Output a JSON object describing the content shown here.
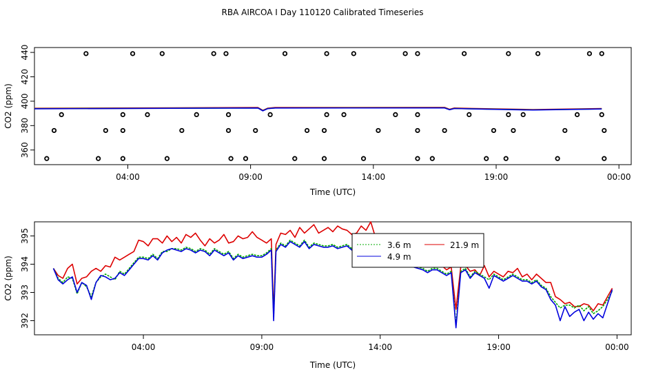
{
  "chart_data": [
    {
      "type": "scatter+line",
      "title": "RBA AIRCOA I  Day 110120  Calibrated Timeseries",
      "xlabel": "Time (UTC)",
      "ylabel": "CO2 (ppm)",
      "xlim": [
        0.2,
        24.5
      ],
      "ylim": [
        348,
        444
      ],
      "x_ticks": [
        4,
        9,
        14,
        19,
        24
      ],
      "x_tick_labels": [
        "04:00",
        "09:00",
        "14:00",
        "19:00",
        "00:00"
      ],
      "y_ticks": [
        360,
        380,
        400,
        420,
        440
      ],
      "y_tick_labels": [
        "360",
        "380",
        "400",
        "420",
        "440"
      ],
      "calibration_points": {
        "name": "calibration",
        "style": "open circle",
        "x": [
          2.3,
          4.2,
          5.4,
          7.5,
          8.0,
          10.4,
          12.1,
          13.2,
          15.3,
          15.8,
          17.7,
          19.5,
          20.7,
          22.8,
          23.3,
          1.3,
          3.8,
          4.8,
          6.8,
          8.1,
          9.8,
          12.1,
          12.8,
          14.9,
          15.8,
          17.9,
          19.5,
          20.1,
          22.3,
          23.3,
          1.0,
          3.1,
          3.8,
          6.2,
          8.1,
          9.2,
          11.3,
          12.0,
          14.2,
          15.8,
          16.9,
          18.9,
          19.7,
          21.8,
          23.4,
          0.7,
          2.8,
          3.8,
          5.6,
          8.2,
          8.8,
          10.8,
          12.0,
          13.6,
          15.8,
          16.4,
          18.6,
          19.4,
          21.5,
          23.4
        ],
        "y": [
          439,
          439,
          439,
          439,
          439,
          439,
          439,
          439,
          439,
          439,
          439,
          439,
          439,
          439,
          439,
          389,
          389,
          389,
          389,
          389,
          389,
          389,
          389,
          389,
          389,
          389,
          389,
          389,
          389,
          389,
          376,
          376,
          376,
          376,
          376,
          376,
          376,
          376,
          376,
          376,
          376,
          376,
          376,
          376,
          376,
          353,
          353,
          353,
          353,
          353,
          353,
          353,
          353,
          353,
          353,
          353,
          353,
          353,
          353,
          353
        ]
      },
      "series": [
        {
          "name": "21.9 m",
          "color": "#dd0000",
          "x": [
            0.2,
            9.3,
            9.5,
            9.7,
            10.0,
            16.9,
            17.1,
            17.3,
            18.0,
            20.5,
            23.3
          ],
          "y": [
            394.2,
            394.8,
            392.5,
            394.3,
            394.8,
            394.9,
            393.4,
            394.4,
            394.1,
            393.2,
            394.0
          ]
        },
        {
          "name": "3.6 m",
          "color": "#00aa00",
          "x": [
            0.2,
            9.3,
            9.5,
            9.7,
            10.0,
            16.9,
            17.1,
            17.3,
            18.0,
            20.5,
            23.3
          ],
          "y": [
            393.9,
            394.5,
            392.2,
            394.0,
            394.5,
            394.6,
            393.1,
            394.1,
            393.8,
            392.9,
            393.7
          ]
        },
        {
          "name": "4.9 m",
          "color": "#0000dd",
          "x": [
            0.2,
            9.3,
            9.5,
            9.7,
            10.0,
            16.9,
            17.1,
            17.3,
            18.0,
            20.5,
            23.3
          ],
          "y": [
            393.8,
            394.4,
            392.1,
            393.9,
            394.4,
            394.5,
            393.0,
            394.0,
            393.7,
            392.8,
            393.6
          ]
        }
      ]
    },
    {
      "type": "line",
      "title": "",
      "xlabel": "Time (UTC)",
      "ylabel": "CO2 (ppm)",
      "xlim": [
        -0.6,
        24.6
      ],
      "ylim": [
        391.5,
        395.5
      ],
      "x_ticks": [
        4,
        9,
        14,
        19,
        24
      ],
      "x_tick_labels": [
        "04:00",
        "09:00",
        "14:00",
        "19:00",
        "00:00"
      ],
      "y_ticks": [
        392,
        393,
        394,
        395
      ],
      "y_tick_labels": [
        "392",
        "393",
        "394",
        "395"
      ],
      "legend": {
        "position": "top-center",
        "entries": [
          "3.6 m",
          "21.9 m",
          "4.9 m"
        ]
      },
      "series": [
        {
          "name": "21.9 m",
          "color": "#dd0000",
          "style": "solid",
          "x": [
            0.2,
            0.4,
            0.6,
            0.8,
            1.0,
            1.2,
            1.4,
            1.6,
            1.8,
            2.0,
            2.2,
            2.4,
            2.6,
            2.8,
            3.0,
            3.2,
            3.4,
            3.6,
            3.8,
            4.0,
            4.2,
            4.4,
            4.6,
            4.8,
            5.0,
            5.2,
            5.4,
            5.6,
            5.8,
            6.0,
            6.2,
            6.4,
            6.6,
            6.8,
            7.0,
            7.2,
            7.4,
            7.6,
            7.8,
            8.0,
            8.2,
            8.4,
            8.6,
            8.8,
            9.0,
            9.2,
            9.4,
            9.5,
            9.6,
            9.8,
            10.0,
            10.2,
            10.4,
            10.6,
            10.8,
            11.0,
            11.2,
            11.4,
            11.6,
            11.8,
            12.0,
            12.2,
            12.4,
            12.6,
            12.8,
            13.0,
            13.2,
            13.4,
            13.6,
            13.8,
            14.0,
            14.2,
            14.4,
            14.6,
            14.8,
            15.0,
            15.2,
            15.4,
            15.6,
            15.8,
            16.0,
            16.2,
            16.4,
            16.6,
            16.8,
            17.0,
            17.2,
            17.4,
            17.6,
            17.8,
            18.0,
            18.2,
            18.4,
            18.6,
            18.8,
            19.0,
            19.2,
            19.4,
            19.6,
            19.8,
            20.0,
            20.2,
            20.4,
            20.6,
            20.8,
            21.0,
            21.2,
            21.4,
            21.6,
            21.8,
            22.0,
            22.2,
            22.4,
            22.6,
            22.8,
            23.0,
            23.2,
            23.4,
            23.6,
            23.8
          ],
          "y": [
            393.85,
            393.6,
            393.5,
            393.85,
            394.0,
            393.3,
            393.5,
            393.55,
            393.75,
            393.85,
            393.75,
            393.95,
            393.9,
            394.25,
            394.15,
            394.25,
            394.35,
            394.45,
            394.85,
            394.8,
            394.65,
            394.9,
            394.9,
            394.75,
            395.0,
            394.8,
            394.95,
            394.75,
            395.05,
            394.95,
            395.1,
            394.85,
            394.65,
            394.9,
            394.75,
            394.85,
            395.05,
            394.75,
            394.8,
            395.0,
            394.9,
            394.95,
            395.15,
            394.95,
            394.85,
            394.75,
            394.9,
            392.3,
            394.7,
            395.1,
            395.05,
            395.2,
            394.95,
            395.3,
            395.1,
            395.25,
            395.4,
            395.1,
            395.2,
            395.3,
            395.15,
            395.35,
            395.25,
            395.2,
            395.05,
            395.1,
            395.35,
            395.2,
            395.5,
            394.95,
            394.85,
            394.55,
            394.4,
            394.3,
            394.15,
            394.45,
            394.25,
            394.15,
            394.05,
            394.2,
            394.15,
            393.95,
            394.15,
            393.95,
            393.8,
            393.9,
            392.4,
            393.9,
            393.95,
            393.75,
            393.8,
            393.6,
            393.95,
            393.55,
            393.75,
            393.65,
            393.55,
            393.75,
            393.7,
            393.85,
            393.55,
            393.65,
            393.45,
            393.65,
            393.5,
            393.35,
            393.35,
            392.85,
            392.75,
            392.6,
            392.65,
            392.5,
            392.5,
            392.6,
            392.55,
            392.35,
            392.6,
            392.55,
            392.85,
            393.15
          ]
        },
        {
          "name": "3.6 m",
          "color": "#00aa00",
          "style": "dotted",
          "x": [
            0.2,
            0.4,
            0.6,
            0.8,
            1.0,
            1.2,
            1.4,
            1.6,
            1.8,
            2.0,
            2.2,
            2.4,
            2.6,
            2.8,
            3.0,
            3.2,
            3.4,
            3.6,
            3.8,
            4.0,
            4.2,
            4.4,
            4.6,
            4.8,
            5.0,
            5.2,
            5.4,
            5.6,
            5.8,
            6.0,
            6.2,
            6.4,
            6.6,
            6.8,
            7.0,
            7.2,
            7.4,
            7.6,
            7.8,
            8.0,
            8.2,
            8.4,
            8.6,
            8.8,
            9.0,
            9.2,
            9.4,
            9.5,
            9.6,
            9.8,
            10.0,
            10.2,
            10.4,
            10.6,
            10.8,
            11.0,
            11.2,
            11.4,
            11.6,
            11.8,
            12.0,
            12.2,
            12.4,
            12.6,
            12.8,
            13.0,
            13.2,
            13.4,
            13.6,
            13.8,
            14.0,
            14.2,
            14.4,
            14.6,
            14.8,
            15.0,
            15.2,
            15.4,
            15.6,
            15.8,
            16.0,
            16.2,
            16.4,
            16.6,
            16.8,
            17.0,
            17.2,
            17.4,
            17.6,
            17.8,
            18.0,
            18.2,
            18.4,
            18.6,
            18.8,
            19.0,
            19.2,
            19.4,
            19.6,
            19.8,
            20.0,
            20.2,
            20.4,
            20.6,
            20.8,
            21.0,
            21.2,
            21.4,
            21.6,
            21.8,
            22.0,
            22.2,
            22.4,
            22.6,
            22.8,
            23.0,
            23.2,
            23.4,
            23.6,
            23.8
          ],
          "y": [
            393.85,
            393.5,
            393.35,
            393.55,
            393.5,
            392.95,
            393.35,
            393.2,
            392.85,
            393.35,
            393.55,
            393.65,
            393.55,
            393.45,
            393.75,
            393.65,
            393.85,
            394.05,
            394.25,
            394.25,
            394.2,
            394.35,
            394.2,
            394.45,
            394.45,
            394.55,
            394.55,
            394.5,
            394.6,
            394.55,
            394.45,
            394.55,
            394.5,
            394.35,
            394.55,
            394.45,
            394.35,
            394.45,
            394.2,
            394.35,
            394.25,
            394.3,
            394.35,
            394.3,
            394.3,
            394.4,
            394.55,
            392.15,
            394.5,
            394.75,
            394.65,
            394.85,
            394.75,
            394.65,
            394.85,
            394.6,
            394.75,
            394.7,
            394.65,
            394.65,
            394.7,
            394.6,
            394.65,
            394.7,
            394.55,
            394.7,
            394.6,
            394.75,
            394.55,
            394.5,
            394.35,
            394.3,
            394.2,
            394.35,
            394.05,
            394.2,
            394.25,
            393.95,
            393.9,
            393.85,
            393.75,
            393.85,
            393.85,
            393.75,
            393.65,
            393.75,
            391.85,
            393.75,
            393.85,
            393.55,
            393.75,
            393.65,
            393.55,
            393.45,
            393.65,
            393.55,
            393.45,
            393.55,
            393.65,
            393.55,
            393.45,
            393.45,
            393.35,
            393.45,
            393.25,
            393.15,
            392.85,
            392.65,
            392.45,
            392.55,
            392.55,
            392.45,
            392.55,
            392.35,
            392.5,
            392.25,
            392.35,
            392.5,
            392.75,
            393.05
          ]
        },
        {
          "name": "4.9 m",
          "color": "#0000dd",
          "style": "solid",
          "x": [
            0.2,
            0.4,
            0.6,
            0.8,
            1.0,
            1.2,
            1.4,
            1.6,
            1.8,
            2.0,
            2.2,
            2.4,
            2.6,
            2.8,
            3.0,
            3.2,
            3.4,
            3.6,
            3.8,
            4.0,
            4.2,
            4.4,
            4.6,
            4.8,
            5.0,
            5.2,
            5.4,
            5.6,
            5.8,
            6.0,
            6.2,
            6.4,
            6.6,
            6.8,
            7.0,
            7.2,
            7.4,
            7.6,
            7.8,
            8.0,
            8.2,
            8.4,
            8.6,
            8.8,
            9.0,
            9.2,
            9.4,
            9.5,
            9.6,
            9.8,
            10.0,
            10.2,
            10.4,
            10.6,
            10.8,
            11.0,
            11.2,
            11.4,
            11.6,
            11.8,
            12.0,
            12.2,
            12.4,
            12.6,
            12.8,
            13.0,
            13.2,
            13.4,
            13.6,
            13.8,
            14.0,
            14.2,
            14.4,
            14.6,
            14.8,
            15.0,
            15.2,
            15.4,
            15.6,
            15.8,
            16.0,
            16.2,
            16.4,
            16.6,
            16.8,
            17.0,
            17.2,
            17.4,
            17.6,
            17.8,
            18.0,
            18.2,
            18.4,
            18.6,
            18.8,
            19.0,
            19.2,
            19.4,
            19.6,
            19.8,
            20.0,
            20.2,
            20.4,
            20.6,
            20.8,
            21.0,
            21.2,
            21.4,
            21.6,
            21.8,
            22.0,
            22.2,
            22.4,
            22.6,
            22.8,
            23.0,
            23.2,
            23.4,
            23.6,
            23.8
          ],
          "y": [
            393.85,
            393.45,
            393.3,
            393.45,
            393.55,
            393.0,
            393.35,
            393.25,
            392.75,
            393.35,
            393.6,
            393.55,
            393.45,
            393.5,
            393.7,
            393.6,
            393.8,
            394.0,
            394.2,
            394.2,
            394.15,
            394.3,
            394.15,
            394.4,
            394.5,
            394.55,
            394.5,
            394.45,
            394.55,
            394.5,
            394.4,
            394.5,
            394.45,
            394.3,
            394.5,
            394.4,
            394.3,
            394.4,
            394.15,
            394.3,
            394.2,
            394.25,
            394.3,
            394.25,
            394.25,
            394.35,
            394.5,
            392.0,
            394.45,
            394.7,
            394.6,
            394.8,
            394.7,
            394.6,
            394.8,
            394.55,
            394.7,
            394.65,
            394.6,
            394.6,
            394.65,
            394.55,
            394.6,
            394.65,
            394.5,
            394.65,
            394.55,
            394.7,
            394.45,
            394.4,
            394.2,
            394.25,
            394.1,
            394.25,
            393.95,
            394.15,
            394.2,
            393.9,
            393.85,
            393.8,
            393.7,
            393.8,
            393.8,
            393.7,
            393.6,
            393.7,
            391.75,
            393.7,
            393.8,
            393.5,
            393.7,
            393.6,
            393.5,
            393.15,
            393.6,
            393.5,
            393.4,
            393.5,
            393.6,
            393.5,
            393.4,
            393.4,
            393.3,
            393.4,
            393.2,
            393.1,
            392.75,
            392.55,
            392.0,
            392.5,
            392.15,
            392.3,
            392.4,
            392.0,
            392.3,
            392.05,
            392.25,
            392.1,
            392.6,
            393.1
          ]
        }
      ]
    }
  ]
}
